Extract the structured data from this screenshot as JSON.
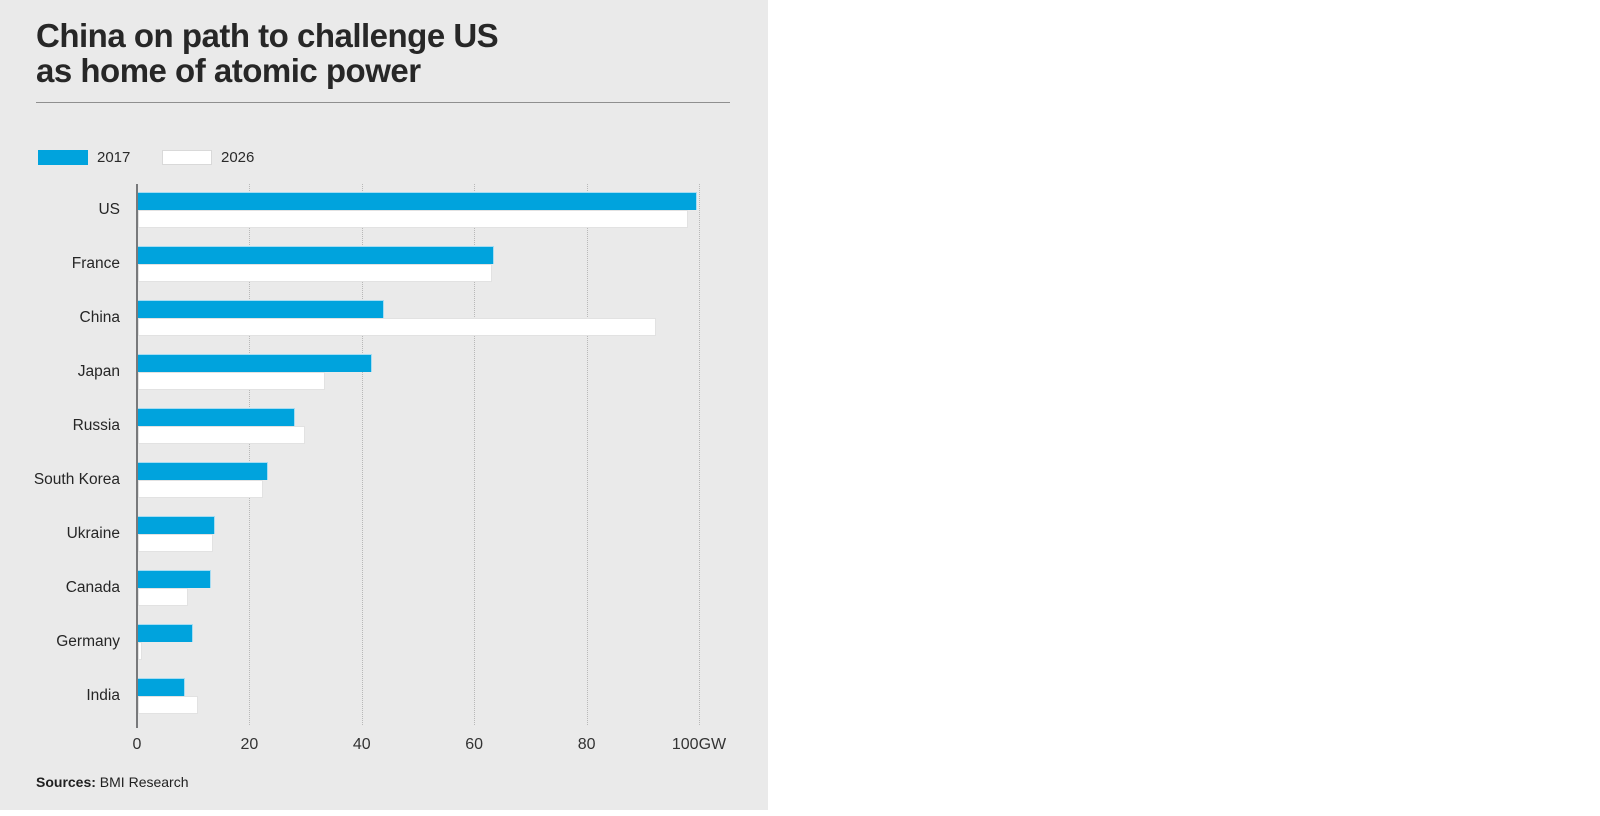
{
  "title": {
    "line1": "China on path to challenge US",
    "line2": "as home of atomic power"
  },
  "legend": [
    {
      "label": "2017",
      "color": "#00a3dd"
    },
    {
      "label": "2026",
      "color": "#ffffff"
    }
  ],
  "source": {
    "prefix": "Sources:",
    "text": " BMI Research"
  },
  "colors": {
    "accent_blue": "#00a3dd",
    "panel_background": "#eaeaea",
    "axis": "#78797b"
  },
  "chart_data": {
    "type": "bar",
    "orientation": "horizontal",
    "title": "China on path to challenge US as home of atomic power",
    "unit": "GW",
    "xlabel": "",
    "ylabel": "",
    "xlim": [
      0,
      100
    ],
    "xticks": [
      0,
      20,
      40,
      60,
      80,
      100
    ],
    "xtick_labels": [
      "0",
      "20",
      "40",
      "60",
      "80",
      "100GW"
    ],
    "grid": "vertical-dotted",
    "legend_position": "top-left",
    "categories": [
      "US",
      "France",
      "China",
      "Japan",
      "Russia",
      "South Korea",
      "Ukraine",
      "Canada",
      "Germany",
      "India"
    ],
    "series": [
      {
        "name": "2017",
        "color": "#00a3dd",
        "values": [
          99.5,
          63.3,
          43.8,
          41.7,
          27.9,
          23.1,
          13.7,
          13.0,
          9.8,
          8.3
        ]
      },
      {
        "name": "2026",
        "color": "#ffffff",
        "values": [
          97.8,
          63.0,
          92.2,
          33.3,
          29.8,
          22.3,
          13.4,
          8.9,
          0.8,
          10.6
        ]
      }
    ]
  }
}
